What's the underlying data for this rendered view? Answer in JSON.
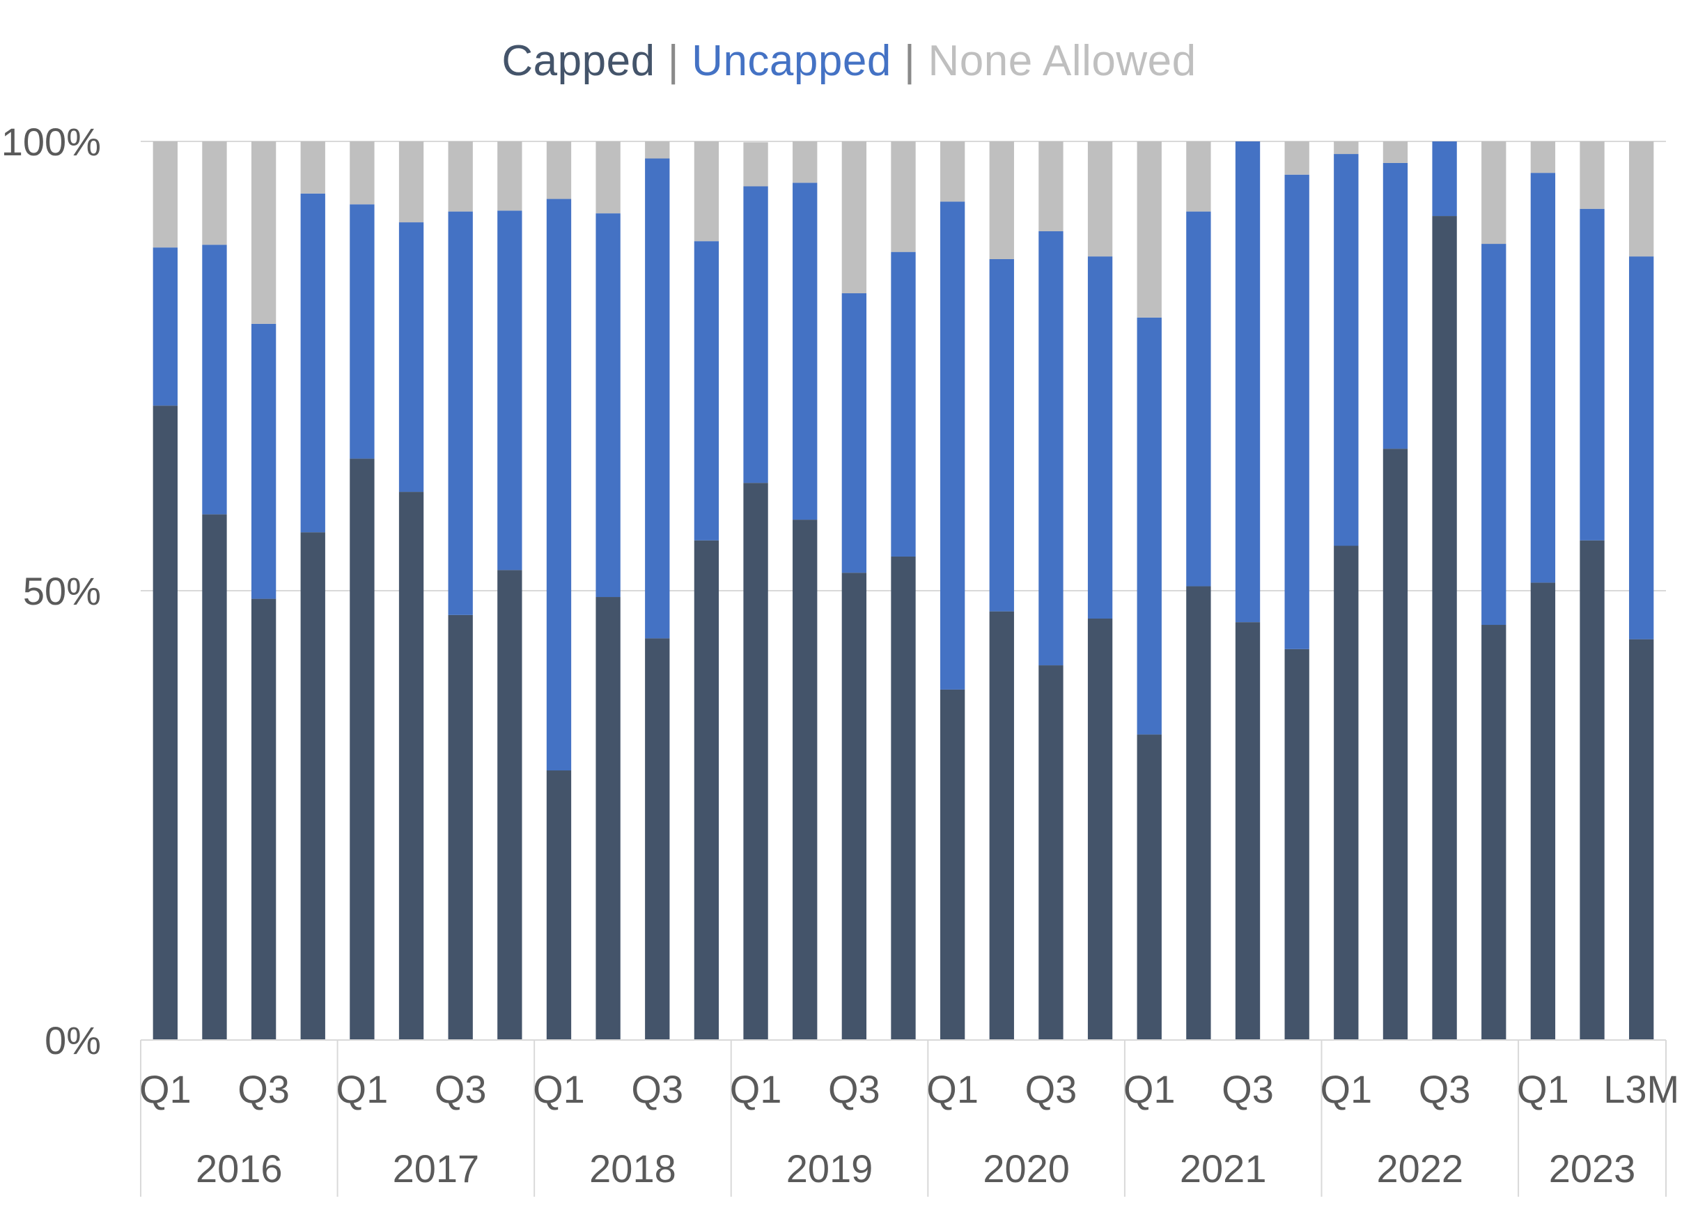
{
  "legend": {
    "items": [
      {
        "label": "Capped",
        "color": "#44546A"
      },
      {
        "label": "Uncapped",
        "color": "#4472C4"
      },
      {
        "label": "None Allowed",
        "color": "#BFBFBF"
      }
    ],
    "separator": "|"
  },
  "chart_data": {
    "type": "bar",
    "stacked": true,
    "title": "",
    "xlabel": "",
    "ylabel": "",
    "ylim": [
      0,
      100
    ],
    "y_ticks": [
      {
        "value": 0,
        "label": "0%"
      },
      {
        "value": 50,
        "label": "50%"
      },
      {
        "value": 100,
        "label": "100%"
      }
    ],
    "categories": [
      "2016 Q1",
      "2016 Q2",
      "2016 Q3",
      "2016 Q4",
      "2017 Q1",
      "2017 Q2",
      "2017 Q3",
      "2017 Q4",
      "2018 Q1",
      "2018 Q2",
      "2018 Q3",
      "2018 Q4",
      "2019 Q1",
      "2019 Q2",
      "2019 Q3",
      "2019 Q4",
      "2020 Q1",
      "2020 Q2",
      "2020 Q3",
      "2020 Q4",
      "2021 Q1",
      "2021 Q2",
      "2021 Q3",
      "2021 Q4",
      "2022 Q1",
      "2022 Q2",
      "2022 Q3",
      "2022 Q4",
      "2023 Q1",
      "2023 Q2",
      "2023 L3M"
    ],
    "x_tick_labels": [
      "Q1",
      "",
      "Q3",
      "",
      "Q1",
      "",
      "Q3",
      "",
      "Q1",
      "",
      "Q3",
      "",
      "Q1",
      "",
      "Q3",
      "",
      "Q1",
      "",
      "Q3",
      "",
      "Q1",
      "",
      "Q3",
      "",
      "Q1",
      "",
      "Q3",
      "",
      "Q1",
      "",
      "L3M"
    ],
    "groups": [
      {
        "label": "2016",
        "count": 4
      },
      {
        "label": "2017",
        "count": 4
      },
      {
        "label": "2018",
        "count": 4
      },
      {
        "label": "2019",
        "count": 4
      },
      {
        "label": "2020",
        "count": 4
      },
      {
        "label": "2021",
        "count": 4
      },
      {
        "label": "2022",
        "count": 4
      },
      {
        "label": "2023",
        "count": 3
      }
    ],
    "series": [
      {
        "name": "Capped",
        "color": "#44546A",
        "values": [
          70.6,
          58.5,
          49.1,
          56.5,
          64.7,
          61.0,
          47.3,
          52.3,
          30.0,
          49.3,
          44.7,
          55.6,
          62.0,
          57.9,
          52.0,
          53.8,
          39.0,
          47.7,
          41.7,
          46.9,
          34.0,
          50.5,
          46.5,
          43.5,
          55.0,
          65.8,
          91.7,
          46.2,
          50.9,
          55.6,
          44.6
        ]
      },
      {
        "name": "Uncapped",
        "color": "#4472C4",
        "values": [
          17.6,
          30.0,
          30.6,
          37.7,
          28.3,
          30.0,
          44.9,
          40.0,
          63.6,
          42.7,
          53.4,
          33.3,
          33.0,
          37.5,
          31.1,
          33.9,
          54.3,
          39.2,
          48.3,
          40.3,
          46.4,
          41.7,
          53.5,
          52.8,
          43.6,
          31.8,
          8.3,
          42.4,
          45.6,
          36.9,
          42.6
        ]
      },
      {
        "name": "None Allowed",
        "color": "#BFBFBF",
        "values": [
          11.8,
          11.5,
          20.3,
          5.8,
          7.0,
          9.0,
          7.8,
          7.7,
          6.4,
          8.0,
          1.9,
          11.1,
          4.9,
          4.6,
          16.9,
          12.3,
          6.7,
          13.1,
          10.0,
          12.8,
          19.6,
          7.8,
          0.0,
          3.7,
          1.4,
          2.4,
          0.0,
          11.4,
          3.5,
          7.5,
          12.8
        ]
      }
    ],
    "grid": true,
    "legend_position": "top-center"
  }
}
